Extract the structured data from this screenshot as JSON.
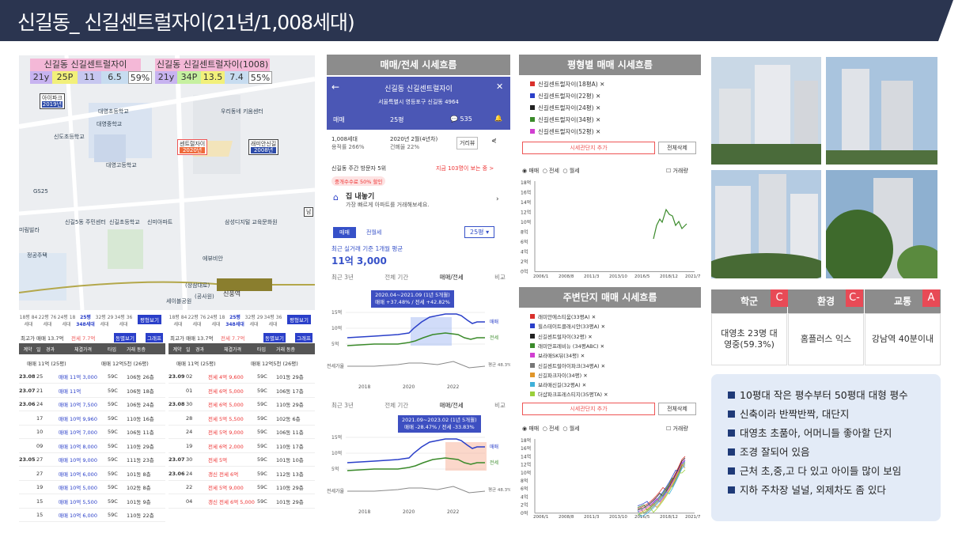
{
  "title": "신길동_ 신길센트럴자이(21년/1,008세대)",
  "map": {
    "label_left": "신길동 신길센트럴자이(1008)",
    "label_right": "신길동 신길센트럴자이(1008)",
    "stats_left": [
      "21y",
      "25P",
      "11",
      "6.5",
      "59%"
    ],
    "stats_right": [
      "21y",
      "34P",
      "13.5",
      "7.4",
      "55%"
    ],
    "pin_aipark": "아이파크",
    "pin_aipark_year": "2019년",
    "pin_central": "센트럴자이",
    "pin_central_year": "2020년",
    "pin_raemian": "래미안신길",
    "pin_raemian_year": "2008년",
    "pin_nam": "남",
    "place_station": "신풍역",
    "places": [
      "대영초등학교",
      "대영중학교",
      "대영고등학교",
      "신도초등학교",
      "GS25",
      "미림빌라",
      "신길5동 주민센터",
      "신길초등학교",
      "신미아파트",
      "우리동네 키움센터",
      "삼성디지털 교육문화원",
      "정공주택",
      "에뷰비안",
      "세이블공원",
      "(상삼대로)",
      "(공사원)"
    ]
  },
  "trade_left": {
    "sizes": [
      "18평 84세대",
      "22평 76세대",
      "24평 18세대",
      "25평 348세대",
      "32평 29세대",
      "34평 36세대"
    ],
    "bar": "최고가 매매 13.7억",
    "bar_jeonse": "전세 7.7억",
    "btn1": "동별보기",
    "btn2": "그래프",
    "btn_all": "평형보기",
    "cols": [
      "계약",
      "일",
      "경과",
      "체결가격",
      "타입",
      "거래 동층"
    ],
    "summary_a": "매매 11억 (25평)",
    "summary_b": "매매 12억5천 (26평)",
    "rows": [
      [
        "23.08",
        "25",
        "",
        "매매 11억 3,000",
        "59C",
        "106동 26층"
      ],
      [
        "23.07",
        "21",
        "",
        "매매 11억",
        "59C",
        "106동 18층"
      ],
      [
        "23.06",
        "24",
        "",
        "매매 10억 7,500",
        "59C",
        "106동 24층"
      ],
      [
        "",
        "17",
        "",
        "매매 10억 9,960",
        "59C",
        "110동 16층"
      ],
      [
        "",
        "10",
        "",
        "매매 10억 7,000",
        "59C",
        "106동 11층"
      ],
      [
        "",
        "09",
        "",
        "매매 10억 8,000",
        "59C",
        "110동 29층"
      ],
      [
        "23.05",
        "27",
        "",
        "매매 10억 9,000",
        "59C",
        "111동 23층"
      ],
      [
        "",
        "27",
        "",
        "매매 10억 6,000",
        "59C",
        "101동 8층"
      ],
      [
        "",
        "19",
        "",
        "매매 10억 5,000",
        "59C",
        "102동 8층"
      ],
      [
        "",
        "15",
        "",
        "매매 10억 5,500",
        "59C",
        "101동 9층"
      ],
      [
        "",
        "15",
        "",
        "매매 10억 6,000",
        "59C",
        "110동 22층"
      ]
    ]
  },
  "trade_right": {
    "sizes": [
      "18평 84세대",
      "22평 76세대",
      "24평 18세대",
      "25평 348세대",
      "32평 29세대",
      "34평 36세대"
    ],
    "bar": "최고가 매매 13.7억",
    "bar_jeonse": "전세 7.7억",
    "btn1": "동별보기",
    "btn2": "그래프",
    "btn_all": "평형보기",
    "cols": [
      "계약",
      "일",
      "경과",
      "체결가격",
      "타입",
      "거래 동층"
    ],
    "summary_a": "매매 11억 (25평)",
    "summary_b": "매매 12억5천 (26평)",
    "rows": [
      [
        "23.09",
        "02",
        "",
        "전세 4억 9,600",
        "59C",
        "101동 29층"
      ],
      [
        "",
        "01",
        "",
        "전세 6억 5,000",
        "59C",
        "106동 17층"
      ],
      [
        "23.08",
        "30",
        "",
        "전세 6억 5,000",
        "59C",
        "110동 29층"
      ],
      [
        "",
        "28",
        "",
        "전세 5억 5,500",
        "59C",
        "102동 6층"
      ],
      [
        "",
        "24",
        "",
        "전세 5억 9,000",
        "59C",
        "106동 11층"
      ],
      [
        "",
        "19",
        "",
        "전세 6억 2,000",
        "59C",
        "110동 17층"
      ],
      [
        "23.07",
        "30",
        "",
        "전세 5억",
        "59C",
        "101동 10층"
      ],
      [
        "23.06",
        "24",
        "",
        "갱신 전세 6억",
        "59C",
        "112동 13층"
      ],
      [
        "",
        "22",
        "",
        "전세 5억 9,000",
        "59C",
        "110동 29층"
      ],
      [
        "",
        "04",
        "",
        "갱신 전세 6억 5,000",
        "59C",
        "101동 29층"
      ]
    ]
  },
  "mid_header": "매매/전세 시세흐름",
  "phone": {
    "name": "신길동 신길센트럴자이",
    "address": "서울특별시 영등포구 신길동 4964",
    "tab_trade": "매매",
    "tab_size": "25평",
    "comments": "535",
    "info1": "1,008세대",
    "info2": "용적률 266%",
    "info3": "2020년 2월(4년차)",
    "info4": "건폐율 22%",
    "btn_dist": "거리뷰",
    "rank": "신길동 주간 방문자 5위",
    "visitors": "지금 103명이 보는 중 >",
    "promo": "중개수수료 50% 할인",
    "sell_title": "집 내놓기",
    "sell_desc": "가장 빠르게 아파트를 거래해보세요.",
    "t_trade": "매매",
    "t_monthly": "전월세",
    "size_sel": "25평",
    "avg_label": "최근 실거래 기준 1개월 평균",
    "avg_value": "11억 3,000",
    "period_tabs": [
      "최근 3년",
      "전체 기간",
      "매매/전세",
      "비교"
    ],
    "chart1_tip": "2020.04~2021.09 (1년 5개월)",
    "chart1_tip2": "매매 +37.48% / 전세 +42.82%",
    "chart2_tip": "2021.09~2023.02 (1년 5개월)",
    "chart2_tip2": "매매 -28.47% / 전세 -33.83%",
    "yticks": [
      "15억",
      "10억",
      "5억",
      "전세가율"
    ],
    "xticks": [
      "2018",
      "2020",
      "2022"
    ],
    "tag_trade": "매매",
    "tag_jeonse": "전세",
    "tag_ratio": "평균 48.3%"
  },
  "size_chart": {
    "header": "평형별 매매 시세흐름",
    "items": [
      "신길센트럴자이(18평A) ✕",
      "신길센트럴자이(22평) ✕",
      "신길센트럴자이(24평) ✕",
      "신길센트럴자이(34평) ✕",
      "신길센트럴자이(52평) ✕"
    ],
    "colors": [
      "#d9302c",
      "#2a3fc9",
      "#222222",
      "#3a8a2a",
      "#d13fd1"
    ],
    "add_btn": "시세관단지 추가",
    "del_btn": "전체삭제",
    "radio": [
      "매매",
      "전세",
      "월세"
    ],
    "check": "거래량",
    "yticks": [
      "18억",
      "16억",
      "14억",
      "12억",
      "10억",
      "8억",
      "6억",
      "4억",
      "2억",
      "0억"
    ],
    "xticks": [
      "2006/1",
      "2008/8",
      "2011/3",
      "2013/10",
      "2016/5",
      "2018/12",
      "2021/7"
    ]
  },
  "nearby_chart": {
    "header": "주변단지 매매 시세흐름",
    "items": [
      "래미안에스티움(33평A) ✕",
      "힐스테이트클래시안(33평A) ✕",
      "신길센트럴자이(32평) ✕",
      "래미안프레비뉴 (34평ABC) ✕",
      "보라매SK뷰(34평) ✕",
      "신길센트럴아이파크(34평A) ✕",
      "신길파크자이(34평) ✕",
      "보라매신길(32평A) ✕",
      "더샵파크프레스티지(35평TA) ✕"
    ],
    "colors": [
      "#d9302c",
      "#2a3fc9",
      "#222222",
      "#3a8a2a",
      "#d13fd1",
      "#777777",
      "#e0962a",
      "#3fb0d9",
      "#9acf3a"
    ],
    "add_btn": "시세관단지 추가",
    "del_btn": "전체삭제",
    "radio": [
      "매매",
      "전세",
      "월세"
    ],
    "check": "거래량",
    "yticks": [
      "18억",
      "16억",
      "14억",
      "12억",
      "10억",
      "8억",
      "6억",
      "4억",
      "2억",
      "0억"
    ],
    "xticks": [
      "2006/1",
      "2008/8",
      "2011/3",
      "2013/10",
      "2016/5",
      "2018/12",
      "2021/7"
    ]
  },
  "grades": {
    "school": "학군",
    "school_grade": "C",
    "env": "환경",
    "env_grade": "C-",
    "traffic": "교통",
    "traffic_grade": "A",
    "school_desc": "대영초 23명 대영중(59.3%)",
    "env_desc": "홈플러스 익스",
    "traffic_desc": "강남역 40분이내"
  },
  "bullets": [
    "10평대 작은 평수부터 50평대 대형 평수",
    "신축이라 반짝반짝, 대단지",
    "대영초 초품아, 어머니들 좋아할 단지",
    "조경 잘되어 있음",
    "근처 초,중,고 다 있고 아이들 많이 보임",
    "지하 주차장 널널, 외제차도 좀 있다"
  ]
}
